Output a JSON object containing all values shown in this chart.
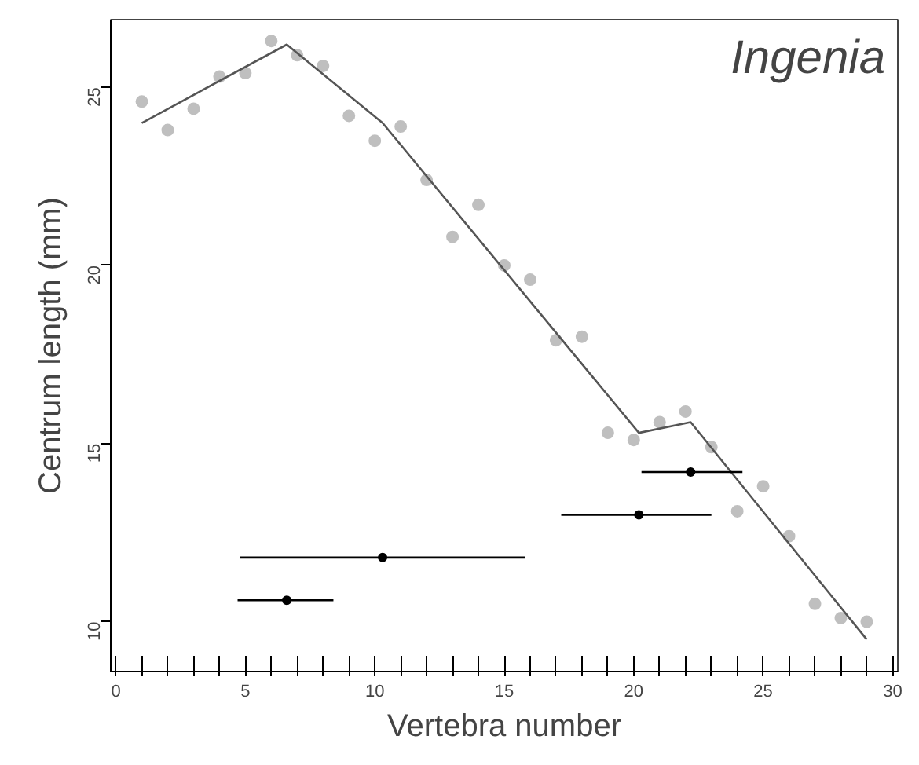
{
  "chart_data": {
    "type": "scatter",
    "title": "Ingenia",
    "xlabel": "Vertebra number",
    "ylabel": "Centrum length (mm)",
    "xlim": [
      -0.2,
      30.2
    ],
    "ylim": [
      8.6,
      26.9
    ],
    "xticks": [
      0,
      {
        "value": 1,
        "label": null
      },
      {
        "value": 2,
        "label": null
      },
      {
        "value": 3,
        "label": null
      },
      {
        "value": 4,
        "label": null
      },
      5,
      {
        "value": 6,
        "label": null
      },
      {
        "value": 7,
        "label": null
      },
      {
        "value": 8,
        "label": null
      },
      {
        "value": 9,
        "label": null
      },
      10,
      {
        "value": 11,
        "label": null
      },
      {
        "value": 12,
        "label": null
      },
      {
        "value": 13,
        "label": null
      },
      {
        "value": 14,
        "label": null
      },
      15,
      {
        "value": 16,
        "label": null
      },
      {
        "value": 17,
        "label": null
      },
      {
        "value": 18,
        "label": null
      },
      {
        "value": 19,
        "label": null
      },
      20,
      {
        "value": 21,
        "label": null
      },
      {
        "value": 22,
        "label": null
      },
      {
        "value": 23,
        "label": null
      },
      {
        "value": 24,
        "label": null
      },
      25,
      {
        "value": 26,
        "label": null
      },
      {
        "value": 27,
        "label": null
      },
      {
        "value": 28,
        "label": null
      },
      {
        "value": 29,
        "label": null
      },
      30
    ],
    "yticks": [
      10,
      15,
      20,
      25
    ],
    "grid": false,
    "marker": "circle",
    "series": [
      {
        "color": "#bfbfbf",
        "x": [
          1,
          2,
          3,
          4,
          5,
          6,
          7,
          8,
          9,
          10,
          11,
          12,
          13,
          14,
          15,
          16,
          17,
          18,
          19,
          20,
          21,
          22,
          23,
          24,
          25,
          26,
          27,
          28,
          29
        ],
        "values": [
          24.6,
          23.8,
          24.4,
          25.3,
          25.4,
          26.3,
          25.9,
          25.6,
          24.2,
          23.5,
          23.9,
          22.4,
          20.8,
          21.7,
          20.0,
          19.6,
          17.9,
          18.0,
          15.3,
          15.1,
          15.6,
          15.9,
          14.9,
          13.1,
          13.8,
          12.4,
          10.5,
          10.1,
          10.0
        ]
      },
      {
        "type": "line",
        "marker": "none",
        "color": "#555555",
        "x": [
          1,
          6.6,
          10.3,
          20.2,
          22.2,
          29
        ],
        "values": [
          24.0,
          26.2,
          24.0,
          15.3,
          15.6,
          9.5
        ]
      },
      {
        "type": "scatter",
        "color": "#000000",
        "x": [
          6.6,
          10.3,
          20.2,
          22.2
        ],
        "values": [
          10.6,
          11.8,
          13.0,
          14.2
        ],
        "xerrors": [
          [
            4.7,
            8.4
          ],
          [
            4.8,
            15.8
          ],
          [
            17.2,
            23.0
          ],
          [
            20.3,
            24.2
          ]
        ]
      }
    ]
  }
}
